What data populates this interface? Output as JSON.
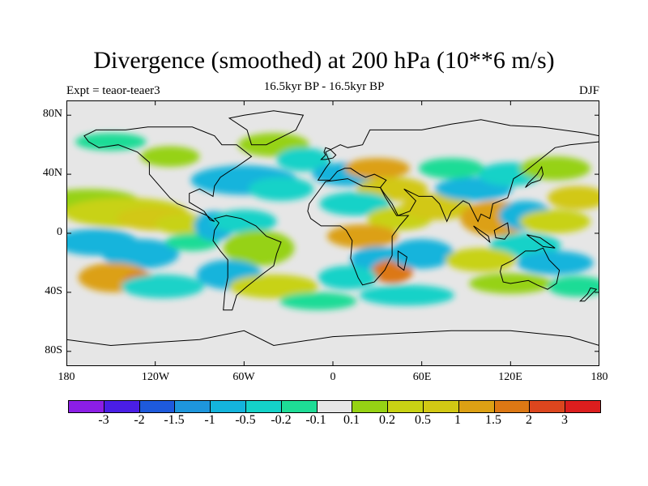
{
  "title": "Divergence (smoothed) at 200 hPa (10**6 m/s)",
  "subtitle": "16.5kyr BP - 16.5kyr BP",
  "experiment_label": "Expt = teaor-teaer3",
  "season_label": "DJF",
  "y_axis": {
    "ticks": [
      "80N",
      "40N",
      "0",
      "40S",
      "80S"
    ]
  },
  "x_axis": {
    "ticks": [
      "180",
      "120W",
      "60W",
      "0",
      "60E",
      "120E",
      "180"
    ]
  },
  "colorbar": {
    "colors": [
      "#8c1ee6",
      "#4a1ee6",
      "#1e5adc",
      "#1e96dc",
      "#14b4dc",
      "#14d2c8",
      "#1edc96",
      "#e6e6e6",
      "#96d214",
      "#c8d214",
      "#d2c814",
      "#dca014",
      "#dc7814",
      "#dc461e",
      "#dc1e1e"
    ],
    "labels": [
      "-3",
      "-2",
      "-1.5",
      "-1",
      "-0.5",
      "-0.2",
      "-0.1",
      "0.1",
      "0.2",
      "0.5",
      "1",
      "1.5",
      "2",
      "3"
    ]
  },
  "map": {
    "background_color": "#e6e6e6",
    "blobs": [
      {
        "lon": -165,
        "lat": 22,
        "w": 34,
        "h": 8,
        "color": "#96d214"
      },
      {
        "lon": -140,
        "lat": 14,
        "w": 42,
        "h": 10,
        "color": "#c8d214"
      },
      {
        "lon": -120,
        "lat": 10,
        "w": 26,
        "h": 8,
        "color": "#d2c814"
      },
      {
        "lon": -160,
        "lat": -6,
        "w": 28,
        "h": 9,
        "color": "#14b4dc"
      },
      {
        "lon": -130,
        "lat": -14,
        "w": 26,
        "h": 10,
        "color": "#14b4dc"
      },
      {
        "lon": -148,
        "lat": -30,
        "w": 24,
        "h": 10,
        "color": "#dca014"
      },
      {
        "lon": -130,
        "lat": -34,
        "w": 12,
        "h": 8,
        "color": "#dc7814"
      },
      {
        "lon": -115,
        "lat": -36,
        "w": 28,
        "h": 8,
        "color": "#1ed2c8"
      },
      {
        "lon": -100,
        "lat": 6,
        "w": 20,
        "h": 7,
        "color": "#c8d214"
      },
      {
        "lon": -95,
        "lat": -6,
        "w": 18,
        "h": 6,
        "color": "#1edc96"
      },
      {
        "lon": -80,
        "lat": 5,
        "w": 14,
        "h": 10,
        "color": "#14b4dc"
      },
      {
        "lon": -60,
        "lat": 8,
        "w": 22,
        "h": 8,
        "color": "#14d2c8"
      },
      {
        "lon": -50,
        "lat": -10,
        "w": 24,
        "h": 12,
        "color": "#96d214"
      },
      {
        "lon": -70,
        "lat": -28,
        "w": 22,
        "h": 10,
        "color": "#14b4dc"
      },
      {
        "lon": -40,
        "lat": -36,
        "w": 30,
        "h": 8,
        "color": "#c8d214"
      },
      {
        "lon": -60,
        "lat": 36,
        "w": 36,
        "h": 10,
        "color": "#14b4dc"
      },
      {
        "lon": -35,
        "lat": 30,
        "w": 22,
        "h": 8,
        "color": "#14d2c8"
      },
      {
        "lon": -110,
        "lat": 52,
        "w": 20,
        "h": 7,
        "color": "#96d214"
      },
      {
        "lon": -150,
        "lat": 62,
        "w": 24,
        "h": 6,
        "color": "#1edc96"
      },
      {
        "lon": -40,
        "lat": 60,
        "w": 24,
        "h": 8,
        "color": "#96d214"
      },
      {
        "lon": -20,
        "lat": 50,
        "w": 18,
        "h": 8,
        "color": "#14d2c8"
      },
      {
        "lon": 10,
        "lat": 40,
        "w": 24,
        "h": 8,
        "color": "#14b4dc"
      },
      {
        "lon": 30,
        "lat": 44,
        "w": 22,
        "h": 7,
        "color": "#dca014"
      },
      {
        "lon": 40,
        "lat": 30,
        "w": 24,
        "h": 8,
        "color": "#d2c814"
      },
      {
        "lon": 15,
        "lat": 20,
        "w": 24,
        "h": 8,
        "color": "#14d2c8"
      },
      {
        "lon": 45,
        "lat": 10,
        "w": 22,
        "h": 8,
        "color": "#c8d214"
      },
      {
        "lon": 20,
        "lat": -2,
        "w": 24,
        "h": 8,
        "color": "#dca014"
      },
      {
        "lon": 30,
        "lat": -18,
        "w": 18,
        "h": 9,
        "color": "#14b4dc"
      },
      {
        "lon": 40,
        "lat": -26,
        "w": 14,
        "h": 8,
        "color": "#dc7814"
      },
      {
        "lon": 60,
        "lat": -14,
        "w": 22,
        "h": 10,
        "color": "#14b4dc"
      },
      {
        "lon": 10,
        "lat": -30,
        "w": 20,
        "h": 8,
        "color": "#14d2c8"
      },
      {
        "lon": 50,
        "lat": -42,
        "w": 32,
        "h": 7,
        "color": "#14d2c8"
      },
      {
        "lon": -10,
        "lat": -46,
        "w": 26,
        "h": 6,
        "color": "#1edc96"
      },
      {
        "lon": 70,
        "lat": 18,
        "w": 24,
        "h": 9,
        "color": "#d2c814"
      },
      {
        "lon": 95,
        "lat": 30,
        "w": 26,
        "h": 8,
        "color": "#14b4dc"
      },
      {
        "lon": 110,
        "lat": 10,
        "w": 24,
        "h": 12,
        "color": "#dca014"
      },
      {
        "lon": 130,
        "lat": 12,
        "w": 18,
        "h": 10,
        "color": "#14b4dc"
      },
      {
        "lon": 150,
        "lat": 8,
        "w": 24,
        "h": 8,
        "color": "#c8d214"
      },
      {
        "lon": 165,
        "lat": 24,
        "w": 20,
        "h": 8,
        "color": "#d2c814"
      },
      {
        "lon": 130,
        "lat": -8,
        "w": 24,
        "h": 8,
        "color": "#14d2c8"
      },
      {
        "lon": 100,
        "lat": -18,
        "w": 24,
        "h": 8,
        "color": "#c8d214"
      },
      {
        "lon": 150,
        "lat": -20,
        "w": 26,
        "h": 8,
        "color": "#14b4dc"
      },
      {
        "lon": 120,
        "lat": -34,
        "w": 28,
        "h": 7,
        "color": "#96d214"
      },
      {
        "lon": 165,
        "lat": -36,
        "w": 20,
        "h": 7,
        "color": "#1edc96"
      },
      {
        "lon": 120,
        "lat": 40,
        "w": 22,
        "h": 8,
        "color": "#14d2c8"
      },
      {
        "lon": 150,
        "lat": 44,
        "w": 24,
        "h": 8,
        "color": "#96d214"
      },
      {
        "lon": 80,
        "lat": 44,
        "w": 22,
        "h": 7,
        "color": "#1edc96"
      }
    ],
    "land": [
      [
        [
          -168,
          66
        ],
        [
          -160,
          70
        ],
        [
          -140,
          70
        ],
        [
          -125,
          72
        ],
        [
          -95,
          72
        ],
        [
          -80,
          66
        ],
        [
          -75,
          60
        ],
        [
          -65,
          60
        ],
        [
          -55,
          52
        ],
        [
          -65,
          45
        ],
        [
          -70,
          42
        ],
        [
          -76,
          38
        ],
        [
          -80,
          32
        ],
        [
          -81,
          25
        ],
        [
          -90,
          30
        ],
        [
          -97,
          27
        ],
        [
          -97,
          21
        ],
        [
          -92,
          18
        ],
        [
          -87,
          15
        ],
        [
          -83,
          9
        ],
        [
          -80,
          8
        ],
        [
          -85,
          12
        ],
        [
          -92,
          15
        ],
        [
          -105,
          20
        ],
        [
          -110,
          24
        ],
        [
          -117,
          32
        ],
        [
          -124,
          40
        ],
        [
          -124,
          48
        ],
        [
          -132,
          55
        ],
        [
          -145,
          60
        ],
        [
          -158,
          58
        ],
        [
          -165,
          62
        ]
      ],
      [
        [
          -80,
          10
        ],
        [
          -72,
          12
        ],
        [
          -62,
          10
        ],
        [
          -52,
          5
        ],
        [
          -45,
          -2
        ],
        [
          -35,
          -6
        ],
        [
          -38,
          -14
        ],
        [
          -40,
          -22
        ],
        [
          -48,
          -28
        ],
        [
          -58,
          -36
        ],
        [
          -65,
          -42
        ],
        [
          -68,
          -52
        ],
        [
          -74,
          -52
        ],
        [
          -73,
          -40
        ],
        [
          -71,
          -30
        ],
        [
          -71,
          -18
        ],
        [
          -76,
          -12
        ],
        [
          -81,
          -5
        ],
        [
          -80,
          2
        ],
        [
          -77,
          7
        ]
      ],
      [
        [
          -55,
          60
        ],
        [
          -45,
          60
        ],
        [
          -25,
          70
        ],
        [
          -20,
          80
        ],
        [
          -40,
          83
        ],
        [
          -60,
          80
        ],
        [
          -70,
          78
        ],
        [
          -58,
          70
        ]
      ],
      [
        [
          -10,
          36
        ],
        [
          -5,
          44
        ],
        [
          -2,
          48
        ],
        [
          -5,
          55
        ],
        [
          5,
          60
        ],
        [
          10,
          58
        ],
        [
          20,
          60
        ],
        [
          25,
          70
        ],
        [
          40,
          70
        ],
        [
          60,
          70
        ],
        [
          80,
          74
        ],
        [
          100,
          77
        ],
        [
          120,
          73
        ],
        [
          140,
          72
        ],
        [
          170,
          68
        ],
        [
          180,
          66
        ],
        [
          180,
          62
        ],
        [
          160,
          60
        ],
        [
          150,
          58
        ],
        [
          140,
          50
        ],
        [
          130,
          42
        ],
        [
          122,
          37
        ],
        [
          120,
          30
        ],
        [
          118,
          24
        ],
        [
          108,
          20
        ],
        [
          106,
          10
        ],
        [
          100,
          13
        ],
        [
          98,
          8
        ],
        [
          92,
          20
        ],
        [
          88,
          22
        ],
        [
          80,
          15
        ],
        [
          77,
          8
        ],
        [
          72,
          20
        ],
        [
          67,
          25
        ],
        [
          58,
          25
        ],
        [
          52,
          28
        ],
        [
          48,
          30
        ],
        [
          56,
          22
        ],
        [
          52,
          15
        ],
        [
          44,
          12
        ],
        [
          40,
          20
        ],
        [
          34,
          28
        ],
        [
          32,
          31
        ],
        [
          36,
          36
        ],
        [
          28,
          40
        ],
        [
          22,
          38
        ],
        [
          18,
          40
        ],
        [
          12,
          44
        ],
        [
          8,
          44
        ],
        [
          3,
          42
        ],
        [
          -2,
          36
        ]
      ],
      [
        [
          -17,
          15
        ],
        [
          -16,
          20
        ],
        [
          -10,
          28
        ],
        [
          -5,
          35
        ],
        [
          10,
          37
        ],
        [
          20,
          32
        ],
        [
          32,
          31
        ],
        [
          35,
          25
        ],
        [
          43,
          12
        ],
        [
          51,
          12
        ],
        [
          45,
          5
        ],
        [
          40,
          -2
        ],
        [
          40,
          -15
        ],
        [
          35,
          -25
        ],
        [
          28,
          -33
        ],
        [
          20,
          -35
        ],
        [
          17,
          -30
        ],
        [
          12,
          -17
        ],
        [
          13,
          -5
        ],
        [
          9,
          2
        ],
        [
          5,
          5
        ],
        [
          -8,
          5
        ],
        [
          -15,
          10
        ]
      ],
      [
        [
          114,
          -22
        ],
        [
          122,
          -18
        ],
        [
          130,
          -12
        ],
        [
          137,
          -12
        ],
        [
          142,
          -10
        ],
        [
          146,
          -18
        ],
        [
          153,
          -25
        ],
        [
          151,
          -34
        ],
        [
          145,
          -38
        ],
        [
          138,
          -35
        ],
        [
          132,
          -32
        ],
        [
          120,
          -34
        ],
        [
          115,
          -33
        ],
        [
          113,
          -26
        ]
      ],
      [
        [
          -180,
          -72
        ],
        [
          -150,
          -76
        ],
        [
          -120,
          -74
        ],
        [
          -90,
          -72
        ],
        [
          -60,
          -66
        ],
        [
          -40,
          -76
        ],
        [
          0,
          -70
        ],
        [
          40,
          -68
        ],
        [
          80,
          -66
        ],
        [
          120,
          -66
        ],
        [
          160,
          -70
        ],
        [
          180,
          -76
        ],
        [
          180,
          -90
        ],
        [
          -180,
          -90
        ]
      ],
      [
        [
          -8,
          50
        ],
        [
          -5,
          50
        ],
        [
          0,
          51
        ],
        [
          2,
          53
        ],
        [
          -2,
          57
        ],
        [
          -5,
          58
        ],
        [
          -6,
          55
        ],
        [
          -5,
          53
        ]
      ],
      [
        [
          130,
          31
        ],
        [
          134,
          34
        ],
        [
          140,
          36
        ],
        [
          142,
          40
        ],
        [
          141,
          45
        ],
        [
          138,
          40
        ],
        [
          132,
          34
        ]
      ],
      [
        [
          95,
          5
        ],
        [
          105,
          -2
        ],
        [
          106,
          -6
        ],
        [
          99,
          0
        ]
      ],
      [
        [
          109,
          2
        ],
        [
          118,
          7
        ],
        [
          119,
          0
        ],
        [
          116,
          -4
        ],
        [
          110,
          -3
        ]
      ],
      [
        [
          131,
          -1
        ],
        [
          140,
          -3
        ],
        [
          150,
          -10
        ],
        [
          142,
          -9
        ],
        [
          135,
          -4
        ]
      ],
      [
        [
          167,
          -46
        ],
        [
          172,
          -41
        ],
        [
          174,
          -37
        ],
        [
          178,
          -38
        ],
        [
          174,
          -42
        ],
        [
          170,
          -46
        ]
      ],
      [
        [
          44,
          -12
        ],
        [
          50,
          -16
        ],
        [
          48,
          -25
        ],
        [
          44,
          -22
        ]
      ]
    ]
  }
}
